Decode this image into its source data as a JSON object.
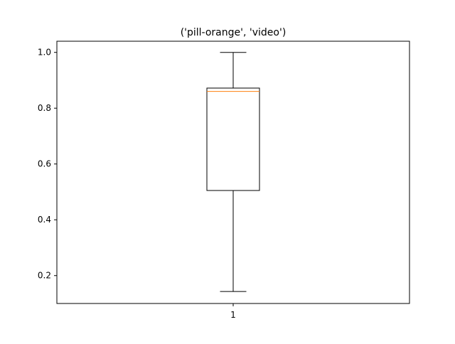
{
  "chart_data": {
    "type": "box",
    "title": "('pill-orange', 'video')",
    "xlabel": "",
    "ylabel": "",
    "categories": [
      "1"
    ],
    "boxes": [
      {
        "label": "1",
        "whisker_low": 0.143,
        "q1": 0.505,
        "median": 0.86,
        "q3": 0.872,
        "whisker_high": 1.0
      }
    ],
    "ylim": [
      0.1,
      1.04
    ],
    "yticks": [
      0.2,
      0.4,
      0.6,
      0.8,
      1.0
    ],
    "ytick_labels": [
      "0.2",
      "0.4",
      "0.6",
      "0.8",
      "1.0"
    ],
    "grid": false,
    "colors": {
      "box": "#000000",
      "median": "#ff7f0e",
      "whisker": "#000000",
      "axes": "#000000"
    }
  }
}
